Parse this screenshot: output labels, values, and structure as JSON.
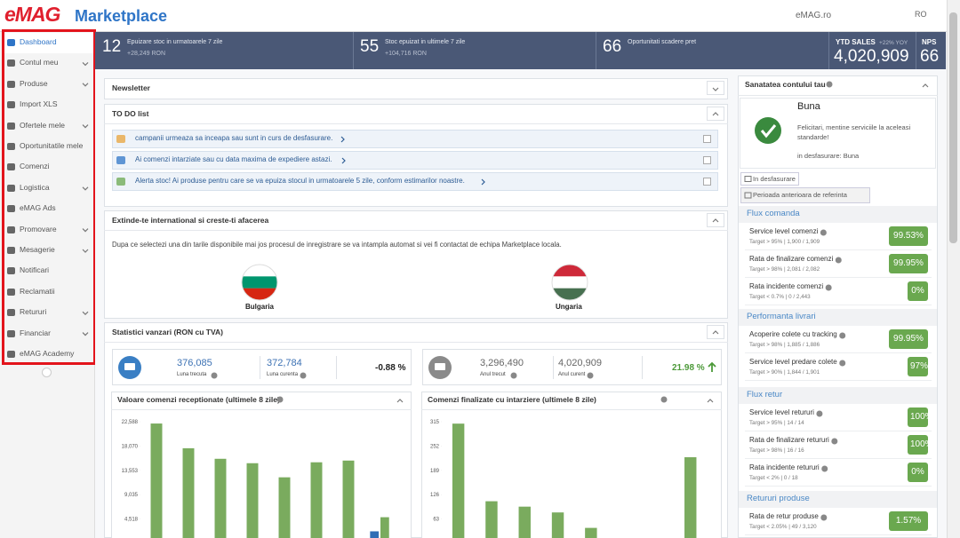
{
  "header": {
    "logo": "eMAG",
    "logo_suffix": "Marketplace",
    "site": "eMAG.ro",
    "language": "RO"
  },
  "sidebar": [
    "Dashboard",
    "Contul meu",
    "Produse",
    "Import XLS",
    "Ofertele mele",
    "Oportunitatile mele",
    "Comenzi",
    "Logistica",
    "eMAG Ads",
    "Promovare",
    "Mesagerie",
    "Notificari",
    "Reclamatii",
    "Retururi",
    "Financiar",
    "eMAG Academy"
  ],
  "kpis": [
    {
      "value": "12",
      "label": "Epuizare stoc in urmatoarele 7 zile",
      "sub": "+28,249 RON"
    },
    {
      "value": "55",
      "label": "Stoc epuizat in ultimele 7 zile",
      "sub": "+104,716 RON"
    },
    {
      "value": "66",
      "label": "Oportunitati scadere pret"
    }
  ],
  "ytd": {
    "label": "YTD SALES",
    "change": "+22% YOY",
    "value": "4,020,909"
  },
  "nps": {
    "label": "NPS",
    "value": "66"
  },
  "newsletter": "Newsletter",
  "todo": {
    "title": "TO DO list",
    "items": [
      "campanii urmeaza sa inceapa sau sunt in curs de desfasurare.",
      "Ai comenzi intarziate sau cu data maxima de expediere astazi.",
      "Alerta stoc! Ai produse pentru care se va epuiza stocul in urmatoarele 5 zile, conform estimarilor noastre."
    ]
  },
  "international": {
    "title": "Extinde-te international si creste-ti afacerea",
    "text": "Dupa ce selectezi una din tarile disponibile mai jos procesul de inregistrare se va intampla automat si vei fi contactat de echipa Marketplace locala.",
    "countries": [
      "Bulgaria",
      "Ungaria"
    ]
  },
  "sales": {
    "title": "Statistici vanzari (RON cu TVA)",
    "month": {
      "previous": "376,085",
      "previous_label": "Luna trecuta",
      "current": "372,784",
      "current_label": "Luna curenta",
      "change": "-0.88 %"
    },
    "year": {
      "previous": "3,296,490",
      "previous_label": "Anul trecut",
      "current": "4,020,909",
      "current_label": "Anul curent",
      "change": "21.98 %"
    }
  },
  "chart_data": [
    {
      "type": "bar",
      "title": "Valoare comenzi receptionate (ultimele 8 zile)",
      "ylim": [
        0,
        22588
      ],
      "yticks": [
        {
          "value": 4518,
          "label": "4,518"
        },
        {
          "value": 9035,
          "label": "9,035"
        },
        {
          "value": 13553,
          "label": "13,553"
        },
        {
          "value": 18070,
          "label": "18,070"
        },
        {
          "value": 22588,
          "label": "22,588"
        }
      ],
      "series": [
        {
          "color": "#7aab5e",
          "values": [
            22250,
            17660,
            15700,
            14880,
            12260,
            15050,
            15370,
            4850
          ]
        },
        {
          "color": "#2f6db5",
          "values": [
            null,
            null,
            null,
            null,
            null,
            null,
            null,
            2230
          ]
        }
      ]
    },
    {
      "type": "bar",
      "title": "Comenzi finalizate cu intarziere (ultimele 8 zile)",
      "ylim": [
        0,
        315
      ],
      "yticks": [
        63,
        126,
        189,
        252,
        315
      ],
      "series": [
        {
          "color": "#7aab5e",
          "values": [
            310,
            109,
            95,
            80,
            40,
            null,
            null,
            223
          ]
        }
      ]
    }
  ],
  "health": {
    "title": "Sanatatea contului tau",
    "status": "Buna",
    "message": "Felicitari, mentine serviciile la aceleasi standarde!",
    "current": "in desfasurare: Buna",
    "tabs": [
      "In desfasurare",
      "Perioada anterioara de referinta"
    ],
    "sections": [
      {
        "title": "Flux comanda",
        "rows": [
          {
            "name": "Service level comenzi",
            "target": "Target > 95% | 1,900 / 1,909",
            "value": "99.53%"
          },
          {
            "name": "Rata de finalizare comenzi",
            "target": "Target > 98% | 2,081 / 2,082",
            "value": "99.95%"
          },
          {
            "name": "Rata incidente comenzi",
            "target": "Target < 0.7% | 0 / 2,443",
            "value": "0%"
          }
        ]
      },
      {
        "title": "Performanta livrari",
        "rows": [
          {
            "name": "Acoperire colete cu tracking",
            "target": "Target > 98% | 1,885 / 1,886",
            "value": "99.95%"
          },
          {
            "name": "Service level predare colete",
            "target": "Target > 90% | 1,844 / 1,901",
            "value": "97%"
          }
        ]
      },
      {
        "title": "Flux retur",
        "rows": [
          {
            "name": "Service level retururi",
            "target": "Target > 95% | 14 / 14",
            "value": "100%"
          },
          {
            "name": "Rata de finalizare retururi",
            "target": "Target > 98% | 16 / 16",
            "value": "100%"
          },
          {
            "name": "Rata incidente retururi",
            "target": "Target < 2% | 0 / 18",
            "value": "0%"
          }
        ]
      },
      {
        "title": "Retururi produse",
        "rows": [
          {
            "name": "Rata de retur produse",
            "target": "Target < 2.05% | 49 / 3,120",
            "value": "1.57%"
          }
        ]
      }
    ]
  }
}
